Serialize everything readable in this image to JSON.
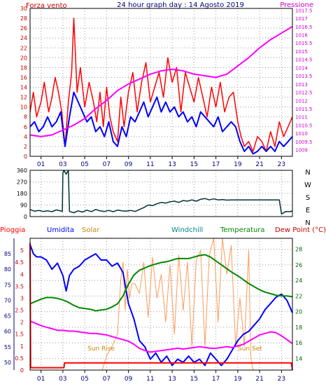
{
  "header": {
    "title": "24 hour graph day : 14 Agosto 2019",
    "left_label": "Forza vento",
    "right_label": "Pressione"
  },
  "colors": {
    "wind": "#ff0000",
    "gust": "#0000ff",
    "pressure": "#ff00ff",
    "direction": "#003333",
    "humidity": "#0000ff",
    "solar": "#ff9955",
    "windchill": "#008888",
    "temperature": "#008800",
    "dewpoint": "#ff00ff",
    "rain": "#ff0000",
    "grid": "#9999aa",
    "frame": "#000000"
  },
  "chart_data": [
    {
      "type": "line",
      "title": "24 hour graph day : 14 Agosto 2019",
      "x_ticks": [
        "01",
        "03",
        "05",
        "07",
        "09",
        "11",
        "13",
        "15",
        "17",
        "19",
        "21",
        "23"
      ],
      "xlim": [
        0,
        24
      ],
      "y_left_label": "Forza vento",
      "y_left_ticks": [
        "0",
        "2",
        "4",
        "6",
        "8",
        "10",
        "12",
        "14",
        "16",
        "18",
        "20",
        "22",
        "24",
        "26",
        "28",
        "30"
      ],
      "ylim_left": [
        0,
        30
      ],
      "y_right_label": "Pressione",
      "y_right_ticks": [
        "1009",
        "1009.5",
        "1010",
        "1010.5",
        "1011",
        "1011.5",
        "1012",
        "1012.5",
        "1013",
        "1013.5",
        "1014",
        "1014.5",
        "1015",
        "1015.5",
        "1016",
        "1016.5",
        "1017",
        "1017.5"
      ],
      "ylim_right": [
        1008.6,
        1017.6
      ],
      "series": [
        {
          "axis": "left",
          "x": [
            0,
            0.3,
            0.6,
            1,
            1.3,
            1.7,
            2,
            2.3,
            2.6,
            2.9,
            3.2,
            3.5,
            3.8,
            4,
            4.3,
            4.6,
            5,
            5.4,
            5.8,
            6.1,
            6.4,
            6.7,
            7,
            7.3,
            7.6,
            8,
            8.3,
            8.6,
            9,
            9.4,
            9.8,
            10.2,
            10.6,
            11,
            11.4,
            11.8,
            12.2,
            12.6,
            13,
            13.4,
            13.8,
            14.2,
            14.6,
            15,
            15.4,
            15.8,
            16.2,
            16.6,
            17,
            17.4,
            17.8,
            18.2,
            18.6,
            19,
            19.3,
            19.6,
            20,
            20.4,
            20.8,
            21.2,
            21.6,
            22,
            22.4,
            22.8,
            23.2,
            23.6,
            24
          ],
          "y": [
            9,
            13,
            8,
            11,
            15,
            9,
            12,
            16,
            13,
            9,
            2,
            11,
            17,
            28,
            13,
            18,
            10,
            15,
            11,
            7,
            13,
            6,
            14,
            8,
            5,
            3,
            12,
            6,
            13,
            17,
            9,
            15,
            19,
            11,
            14,
            17,
            12,
            20,
            15,
            18,
            9,
            17,
            14,
            11,
            16,
            12,
            8,
            14,
            10,
            15,
            9,
            12,
            13,
            7,
            4,
            2,
            3,
            1,
            4,
            3,
            1,
            5,
            2,
            7,
            4,
            6,
            8
          ]
        },
        {
          "axis": "left",
          "x": [
            0,
            0.4,
            0.8,
            1.2,
            1.6,
            2,
            2.4,
            2.8,
            3.2,
            3.6,
            4,
            4.4,
            4.8,
            5.2,
            5.6,
            6,
            6.4,
            6.8,
            7.2,
            7.6,
            8,
            8.4,
            8.8,
            9.2,
            9.6,
            10,
            10.4,
            10.8,
            11.2,
            11.6,
            12,
            12.4,
            12.8,
            13.2,
            13.6,
            14,
            14.4,
            14.8,
            15.2,
            15.6,
            16,
            16.4,
            16.8,
            17.2,
            17.6,
            18,
            18.4,
            18.8,
            19.2,
            19.6,
            20,
            20.4,
            20.8,
            21.2,
            21.6,
            22,
            22.4,
            22.8,
            23.2,
            23.6,
            24
          ],
          "y": [
            6,
            7,
            5,
            6,
            8,
            6,
            7,
            9,
            2,
            8,
            13,
            11,
            9,
            7,
            8,
            5,
            6,
            4,
            7,
            3,
            2,
            6,
            4,
            8,
            7,
            9,
            11,
            8,
            10,
            12,
            9,
            11,
            9,
            10,
            8,
            9,
            7,
            8,
            6,
            9,
            8,
            7,
            6,
            8,
            5,
            6,
            7,
            6,
            3,
            1,
            2,
            0.5,
            1,
            2,
            1,
            2,
            1,
            3,
            2,
            3,
            4
          ]
        },
        {
          "axis": "right",
          "x": [
            0,
            1,
            2,
            3,
            4,
            5,
            6,
            7,
            8,
            9,
            10,
            11,
            12,
            13,
            14,
            15,
            16,
            17,
            18,
            19,
            20,
            21,
            22,
            23,
            24
          ],
          "y": [
            1009.9,
            1009.8,
            1009.9,
            1010.2,
            1010.5,
            1010.9,
            1011.5,
            1012.0,
            1012.6,
            1013.0,
            1013.3,
            1013.6,
            1013.8,
            1013.9,
            1013.8,
            1013.6,
            1013.5,
            1013.4,
            1013.6,
            1014.1,
            1014.6,
            1015.2,
            1015.7,
            1016.1,
            1016.5
          ]
        }
      ]
    },
    {
      "type": "line",
      "y_right_labels": [
        "N",
        "W",
        "S",
        "E",
        "N"
      ],
      "y_left_ticks": [
        "0",
        "90",
        "180",
        "270",
        "360"
      ],
      "ylim": [
        0,
        360
      ],
      "xlim": [
        0,
        24
      ],
      "x": [
        0,
        0.4,
        0.8,
        1.2,
        1.6,
        2,
        2.4,
        2.8,
        2.95,
        3.0,
        3.1,
        3.3,
        3.5,
        3.6,
        4,
        4.4,
        4.8,
        5.2,
        5.6,
        6,
        6.4,
        6.8,
        7.2,
        7.6,
        8,
        8.4,
        8.8,
        9.2,
        9.6,
        10,
        10.4,
        10.8,
        11.2,
        11.6,
        12,
        12.4,
        12.8,
        13.2,
        13.6,
        14,
        14.4,
        14.8,
        15.2,
        15.6,
        16,
        16.4,
        16.8,
        17.2,
        17.6,
        18,
        18.4,
        18.8,
        19.2,
        19.6,
        20,
        20.4,
        20.8,
        21.2,
        21.6,
        22,
        22.4,
        22.8,
        23,
        23.4,
        23.8,
        24
      ],
      "y": [
        55,
        42,
        48,
        40,
        45,
        38,
        52,
        44,
        40,
        340,
        360,
        330,
        360,
        40,
        30,
        45,
        35,
        50,
        38,
        55,
        45,
        40,
        48,
        38,
        50,
        45,
        42,
        48,
        40,
        55,
        70,
        90,
        85,
        100,
        110,
        105,
        115,
        120,
        110,
        125,
        120,
        130,
        120,
        135,
        140,
        130,
        138,
        130,
        132,
        128,
        130,
        130,
        130,
        130,
        130,
        130,
        130,
        130,
        130,
        130,
        130,
        130,
        20,
        40,
        38,
        45
      ]
    },
    {
      "type": "line",
      "x_ticks": [
        "01",
        "03",
        "05",
        "07",
        "09",
        "11",
        "13",
        "15",
        "17",
        "19",
        "21",
        "23"
      ],
      "xlim": [
        0,
        24
      ],
      "legend": [
        "Pioggia",
        "Umidita",
        "Solar",
        "Windchill",
        "Temperatura",
        "Dew Point (°C)"
      ],
      "rain_ticks": [
        "0",
        "0.5",
        "1",
        "1.5",
        "2",
        "2.5",
        "3",
        "3.5",
        "4",
        "4.5",
        "5"
      ],
      "humidity_ticks": [
        "50",
        "55",
        "60",
        "65",
        "70",
        "75",
        "80",
        "85"
      ],
      "temp_ticks": [
        "14",
        "16",
        "18",
        "20",
        "22",
        "24",
        "26",
        "28"
      ],
      "annotations": [
        "Sun Rise",
        "Sun Set"
      ],
      "series": [
        {
          "name": "Umidita",
          "x": [
            0,
            0.3,
            0.6,
            1,
            1.5,
            2,
            2.5,
            3,
            3.3,
            3.6,
            4,
            4.5,
            5,
            5.5,
            6,
            6.5,
            7,
            7.5,
            8,
            8.5,
            9,
            9.5,
            10,
            10.5,
            11,
            11.5,
            12,
            12.5,
            13,
            13.5,
            14,
            14.5,
            15,
            15.5,
            16,
            16.5,
            17,
            17.5,
            18,
            18.5,
            19,
            19.5,
            20,
            20.5,
            21,
            21.5,
            22,
            22.5,
            23,
            23.5,
            24
          ],
          "y": [
            88,
            85,
            84,
            84,
            83,
            80,
            82,
            78,
            73,
            78,
            80,
            81,
            83,
            84,
            85,
            83,
            83,
            81,
            82,
            79,
            69,
            64,
            57,
            55,
            51,
            53,
            50,
            52,
            49,
            51,
            50,
            52,
            50,
            51,
            49,
            53,
            51,
            49,
            51,
            54,
            57,
            59,
            60,
            62,
            64,
            67,
            69,
            71,
            72,
            70,
            66
          ]
        },
        {
          "name": "Temperatura",
          "x": [
            0,
            0.5,
            1,
            1.5,
            2,
            2.5,
            3,
            3.5,
            4,
            4.5,
            5,
            5.5,
            6,
            6.5,
            7,
            7.5,
            8,
            8.5,
            9,
            9.5,
            10,
            10.5,
            11,
            11.5,
            12,
            12.5,
            13,
            13.5,
            14,
            14.5,
            15,
            15.5,
            16,
            16.5,
            17,
            17.5,
            18,
            18.5,
            19,
            19.5,
            20,
            20.5,
            21,
            21.5,
            22,
            22.5,
            23,
            23.5,
            24
          ],
          "y": [
            21.0,
            21.3,
            21.6,
            21.8,
            21.8,
            21.7,
            21.5,
            21.2,
            20.8,
            20.5,
            20.4,
            20.3,
            20.1,
            20.2,
            20.3,
            20.6,
            21.0,
            22.0,
            23.5,
            24.7,
            25.3,
            25.6,
            25.9,
            26.1,
            26.3,
            26.4,
            26.6,
            26.8,
            26.8,
            26.8,
            27.0,
            27.2,
            27.3,
            27.0,
            26.5,
            26.0,
            25.5,
            25.0,
            24.6,
            24.1,
            23.6,
            23.2,
            22.8,
            22.5,
            22.3,
            22.1,
            22.0,
            22.0,
            21.9
          ]
        },
        {
          "name": "Dew Point (°C)",
          "x": [
            0,
            0.5,
            1,
            1.5,
            2,
            2.5,
            3,
            3.5,
            4,
            4.5,
            5,
            5.5,
            6,
            6.5,
            7,
            7.5,
            8,
            8.5,
            9,
            9.5,
            10,
            10.5,
            11,
            11.5,
            12,
            12.5,
            13,
            13.5,
            14,
            14.5,
            15,
            15.5,
            16,
            16.5,
            17,
            17.5,
            18,
            18.5,
            19,
            19.5,
            20,
            20.5,
            21,
            21.5,
            22,
            22.5,
            23,
            23.5,
            24
          ],
          "y": [
            18.8,
            18.5,
            18.2,
            18.0,
            17.8,
            17.6,
            17.6,
            17.5,
            17.5,
            17.4,
            17.3,
            17.2,
            17.2,
            17.1,
            17.0,
            16.8,
            16.6,
            16.4,
            16.2,
            15.8,
            15.3,
            15.0,
            14.8,
            14.9,
            15.0,
            15.1,
            15.2,
            15.3,
            15.2,
            15.3,
            15.4,
            15.5,
            15.4,
            15.3,
            15.3,
            15.4,
            15.5,
            15.4,
            15.6,
            15.8,
            16.2,
            16.6,
            17.0,
            17.2,
            17.4,
            17.3,
            16.9,
            16.4,
            15.9
          ]
        },
        {
          "name": "Solar",
          "x": [
            0,
            6.6,
            6.8,
            7,
            7.5,
            8,
            8.3,
            8.5,
            8.7,
            8.9,
            9.1,
            9.3,
            9.6,
            10,
            10.4,
            10.8,
            11.2,
            11.6,
            12,
            12.4,
            12.8,
            13.2,
            13.6,
            14,
            14.4,
            14.8,
            15.2,
            15.6,
            16,
            16.4,
            16.8,
            17.2,
            17.6,
            18,
            18.4,
            18.8,
            19.2,
            19.6,
            20,
            20.2,
            20.4,
            24
          ],
          "y": [
            0,
            0,
            0.3,
            0.6,
            1.0,
            1.5,
            3.8,
            4.5,
            2.5,
            4.2,
            3.0,
            3.6,
            3.6,
            3.2,
            4.5,
            2.2,
            4.7,
            3.0,
            4.0,
            2.0,
            4.4,
            1.5,
            4.8,
            2.5,
            4.5,
            1.0,
            4.6,
            5.0,
            1.0,
            4.8,
            5.5,
            2.0,
            5.5,
            4.0,
            5.2,
            1.0,
            3.0,
            1.0,
            5.0,
            0.5,
            0,
            0
          ]
        },
        {
          "name": "Pioggia",
          "x": [
            0,
            0.05,
            0.1,
            3.1,
            3.15,
            23.9,
            24
          ],
          "y": [
            5.3,
            0.1,
            0.1,
            0.1,
            0.3,
            0.3,
            0
          ]
        }
      ]
    }
  ]
}
